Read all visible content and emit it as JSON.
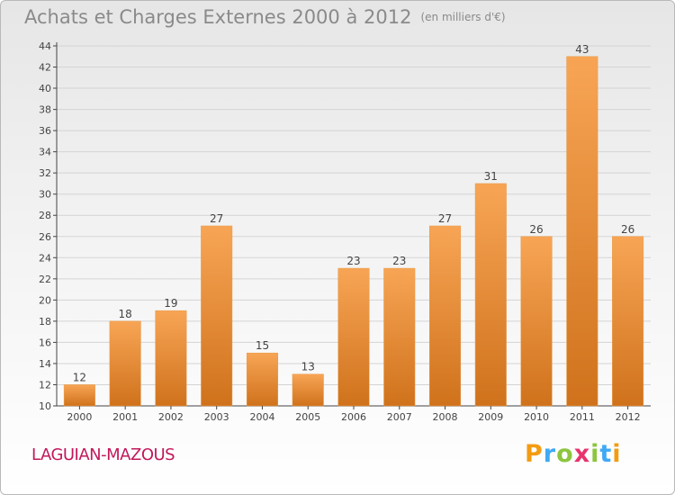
{
  "header": {
    "title": "Achats et Charges Externes 2000 à 2012",
    "unit": "(en milliers d'€)"
  },
  "footer": {
    "commune": "LAGUIAN-MAZOUS",
    "logo": {
      "text": "Proxiti",
      "letters": [
        {
          "char": "P",
          "color": "#f39c12"
        },
        {
          "char": "r",
          "color": "#3fa9f5"
        },
        {
          "char": "o",
          "color": "#8cc63f"
        },
        {
          "char": "x",
          "color": "#e8336d"
        },
        {
          "char": "i",
          "color": "#8cc63f"
        },
        {
          "char": "t",
          "color": "#3fa9f5"
        },
        {
          "char": "i",
          "color": "#f39c12"
        }
      ]
    }
  },
  "colors": {
    "bar_light": "#f7a555",
    "bar_dark": "#d0721c",
    "grid": "#d4d4d4",
    "axis": "#444444",
    "text": "#444444"
  },
  "chart_data": {
    "type": "bar",
    "title": "Achats et Charges Externes 2000 à 2012",
    "categories": [
      "2000",
      "2001",
      "2002",
      "2003",
      "2004",
      "2005",
      "2006",
      "2007",
      "2008",
      "2009",
      "2010",
      "2011",
      "2012"
    ],
    "values": [
      12,
      18,
      19,
      27,
      15,
      13,
      23,
      23,
      27,
      31,
      26,
      43,
      26
    ],
    "ylim": [
      10,
      44
    ],
    "yticks": [
      10,
      12,
      14,
      16,
      18,
      20,
      22,
      24,
      26,
      28,
      30,
      32,
      34,
      36,
      38,
      40,
      42,
      44
    ],
    "grid": true,
    "data_labels": true
  }
}
